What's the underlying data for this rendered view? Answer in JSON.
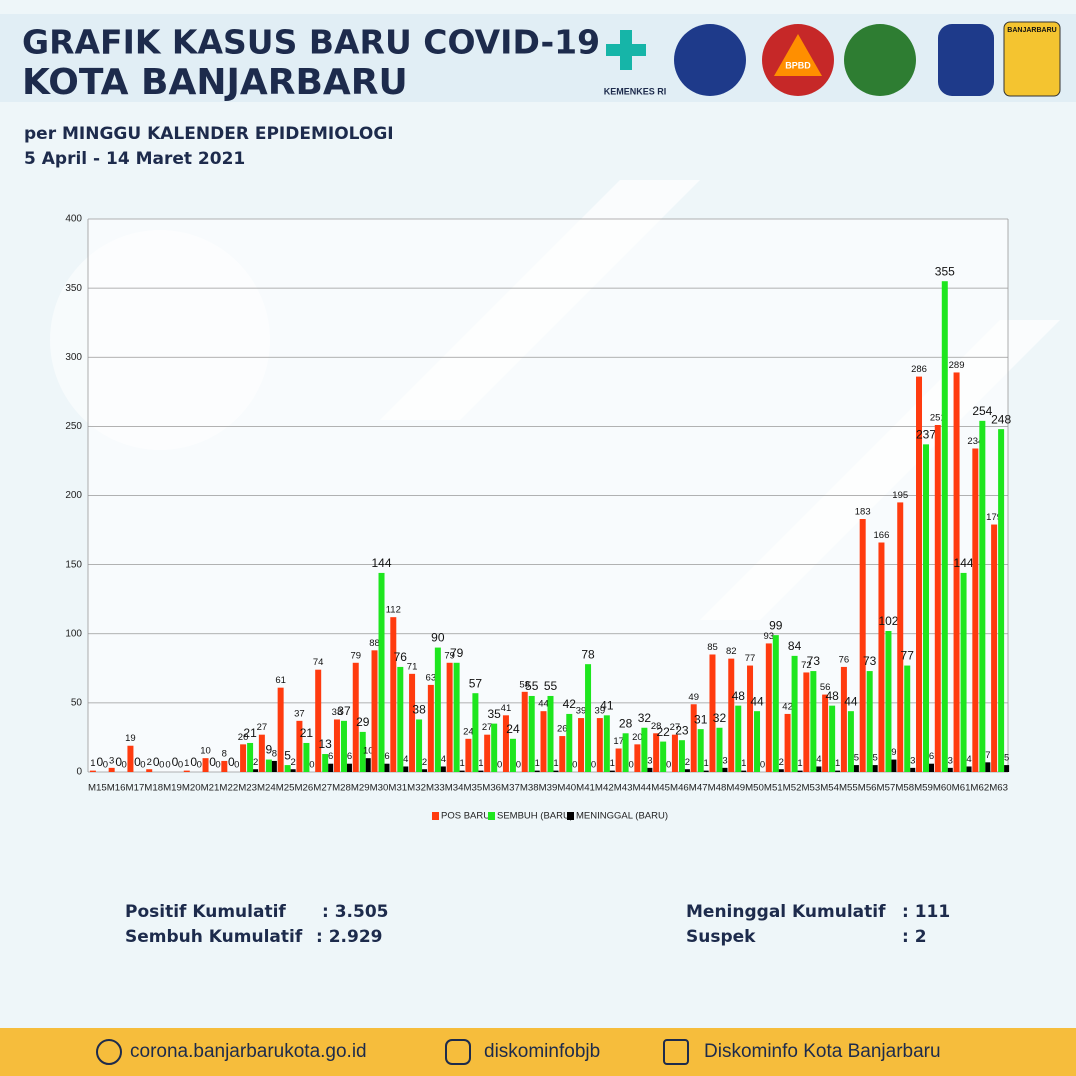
{
  "header": {
    "title": "GRAFIK KASUS BARU COVID-19",
    "subtitle": "KOTA BANJARBARU",
    "period_label": "per MINGGU KALENDER EPIDEMIOLOGI",
    "period": "5 April - 14 Maret 2021",
    "logos": [
      "KEMENKES RI",
      "BPBD",
      "BANJARBARU"
    ]
  },
  "chart_data": {
    "type": "bar",
    "categories": [
      "M15",
      "M16",
      "M17",
      "M18",
      "M19",
      "M20",
      "M21",
      "M22",
      "M23",
      "M24",
      "M25",
      "M26",
      "M27",
      "M28",
      "M29",
      "M30",
      "M31",
      "M32",
      "M33",
      "M34",
      "M35",
      "M36",
      "M37",
      "M38",
      "M39",
      "M40",
      "M41",
      "M42",
      "M43",
      "M44",
      "M45",
      "M46",
      "M47",
      "M48",
      "M49",
      "M50",
      "M51",
      "M52",
      "M53",
      "M54",
      "M55",
      "M56",
      "M57",
      "M58",
      "M59",
      "M60",
      "M61",
      "M62",
      "M63"
    ],
    "series": [
      {
        "name": "POS BARU",
        "color": "#ff3b0f",
        "values": [
          1,
          3,
          19,
          2,
          0,
          1,
          10,
          8,
          20,
          27,
          61,
          37,
          74,
          38,
          79,
          88,
          112,
          71,
          63,
          79,
          24,
          27,
          41,
          58,
          44,
          26,
          39,
          39,
          17,
          20,
          28,
          27,
          49,
          85,
          82,
          77,
          93,
          42,
          72,
          56,
          76,
          183,
          166,
          195,
          286,
          251,
          289,
          234,
          179
        ]
      },
      {
        "name": "SEMBUH (BARU)",
        "color": "#1ee61e",
        "values": [
          0,
          0,
          0,
          0,
          0,
          0,
          0,
          0,
          21,
          9,
          5,
          21,
          13,
          37,
          29,
          144,
          76,
          38,
          90,
          79,
          57,
          35,
          24,
          55,
          55,
          42,
          78,
          41,
          28,
          32,
          22,
          23,
          31,
          32,
          48,
          44,
          99,
          84,
          73,
          48,
          44,
          73,
          102,
          77,
          237,
          355,
          144,
          254,
          248
        ]
      },
      {
        "name": "MENINGGAL (BARU)",
        "color": "#000000",
        "values": [
          0,
          0,
          0,
          0,
          0,
          0,
          0,
          0,
          2,
          8,
          2,
          0,
          6,
          6,
          10,
          6,
          4,
          2,
          4,
          1,
          1,
          0,
          0,
          1,
          1,
          0,
          0,
          1,
          0,
          3,
          0,
          2,
          1,
          3,
          1,
          0,
          2,
          1,
          4,
          1,
          5,
          5,
          9,
          3,
          6,
          3,
          4,
          7,
          5
        ]
      }
    ],
    "ylim": [
      0,
      400
    ],
    "yticks": [
      0,
      50,
      100,
      150,
      200,
      250,
      300,
      350,
      400
    ],
    "grid": true,
    "legend": "bottom"
  },
  "stats": {
    "left": [
      {
        "label": "Positif Kumulatif",
        "value": ": 3.505"
      },
      {
        "label": "Sembuh Kumulatif",
        "value": ": 2.929"
      }
    ],
    "right": [
      {
        "label": "Meninggal Kumulatif",
        "value": ":  111"
      },
      {
        "label": "Suspek",
        "value": ":  2"
      }
    ]
  },
  "footer": {
    "website": "corona.banjarbarukota.go.id",
    "instagram": "diskominfobjb",
    "facebook": "Diskominfo Kota Banjarbaru"
  }
}
